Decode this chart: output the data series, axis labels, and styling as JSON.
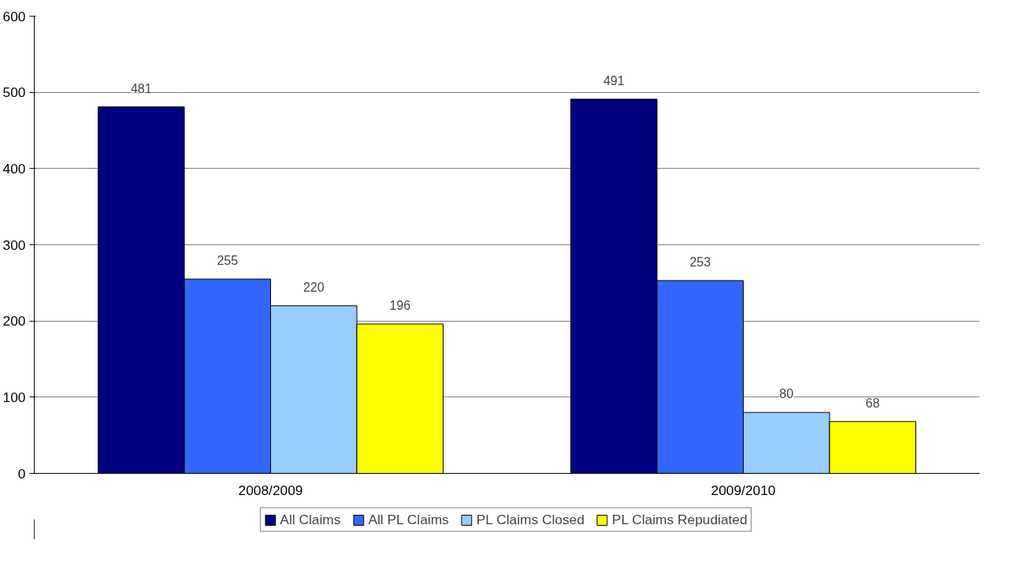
{
  "chart_data": {
    "type": "bar",
    "categories": [
      "2008/2009",
      "2009/2010"
    ],
    "series": [
      {
        "name": "All Claims",
        "color": "#000080",
        "values": [
          481,
          491
        ]
      },
      {
        "name": "All PL Claims",
        "color": "#3366ff",
        "values": [
          255,
          253
        ]
      },
      {
        "name": "PL Claims Closed",
        "color": "#99ccff",
        "values": [
          220,
          80
        ]
      },
      {
        "name": "PL Claims Repudiated",
        "color": "#ffff00",
        "values": [
          196,
          68
        ]
      }
    ],
    "ylim": [
      0,
      600
    ],
    "yticks": [
      0,
      100,
      200,
      300,
      400,
      500,
      600
    ],
    "grid": "y",
    "legend": "bottom",
    "data_labels": true
  }
}
